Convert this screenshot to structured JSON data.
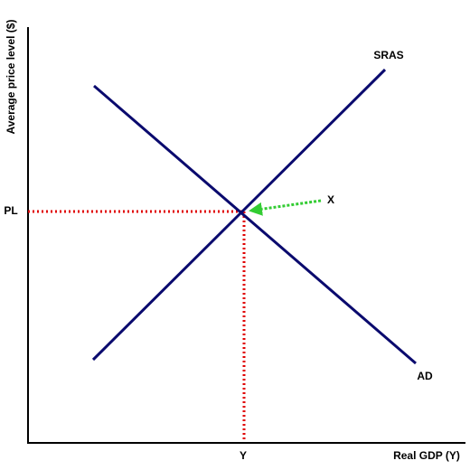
{
  "axes": {
    "y_label": "Average price level ($)",
    "x_label": "Real GDP (Y)"
  },
  "curves": [
    {
      "label": "SRAS"
    },
    {
      "label": "AD"
    }
  ],
  "equilibrium": {
    "price_label": "PL",
    "output_label": "Y"
  },
  "arrow": {
    "label": "X"
  }
}
